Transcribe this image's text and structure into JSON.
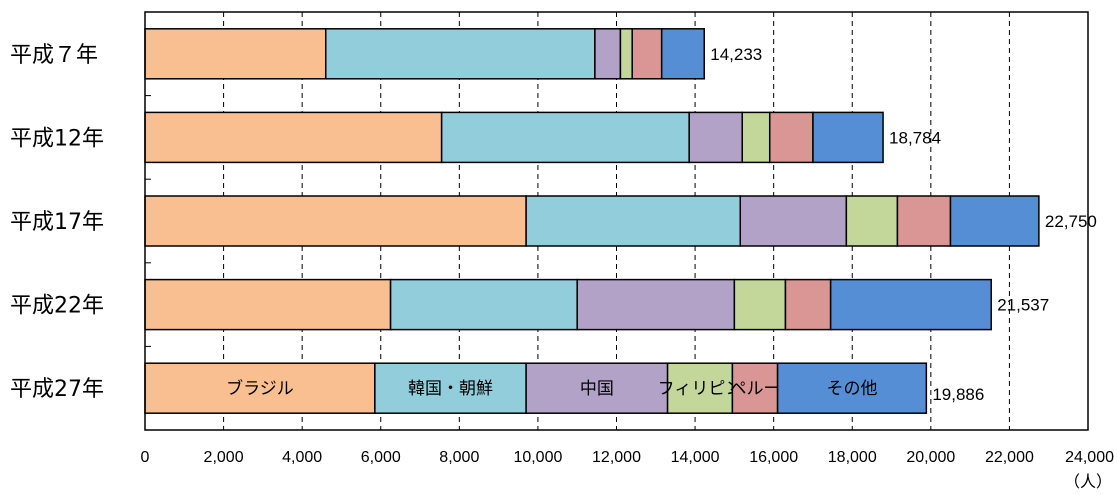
{
  "chart_data": {
    "type": "bar",
    "orientation": "horizontal",
    "stacked": true,
    "categories": [
      "平成７年",
      "平成12年",
      "平成17年",
      "平成22年",
      "平成27年"
    ],
    "series": [
      {
        "name": "ブラジル",
        "color": "#F9BF91",
        "values": [
          4600,
          7550,
          9700,
          6250,
          5850
        ]
      },
      {
        "name": "韓国・朝鮮",
        "color": "#92CDDC",
        "values": [
          6850,
          6300,
          5450,
          4750,
          3850
        ]
      },
      {
        "name": "中国",
        "color": "#B3A2C7",
        "values": [
          650,
          1350,
          2700,
          4000,
          3600
        ]
      },
      {
        "name": "フィリピン",
        "color": "#C4D79B",
        "values": [
          300,
          700,
          1300,
          1300,
          1650
        ]
      },
      {
        "name": "ペルー",
        "color": "#DA9694",
        "values": [
          750,
          1100,
          1350,
          1150,
          1150
        ]
      },
      {
        "name": "その他",
        "color": "#558ED5",
        "values": [
          1083,
          1784,
          2250,
          4087,
          3786
        ]
      }
    ],
    "totals": [
      "14,233",
      "18,784",
      "22,750",
      "21,537",
      "19,886"
    ],
    "xlim": [
      0,
      24000
    ],
    "xticks": [
      "0",
      "2,000",
      "4,000",
      "6,000",
      "8,000",
      "10,000",
      "12,000",
      "14,000",
      "16,000",
      "18,000",
      "20,000",
      "22,000",
      "24,000"
    ],
    "xlabel": "（人）",
    "grid": "vertical dashed",
    "segment_labels_on_last_bar": true
  }
}
